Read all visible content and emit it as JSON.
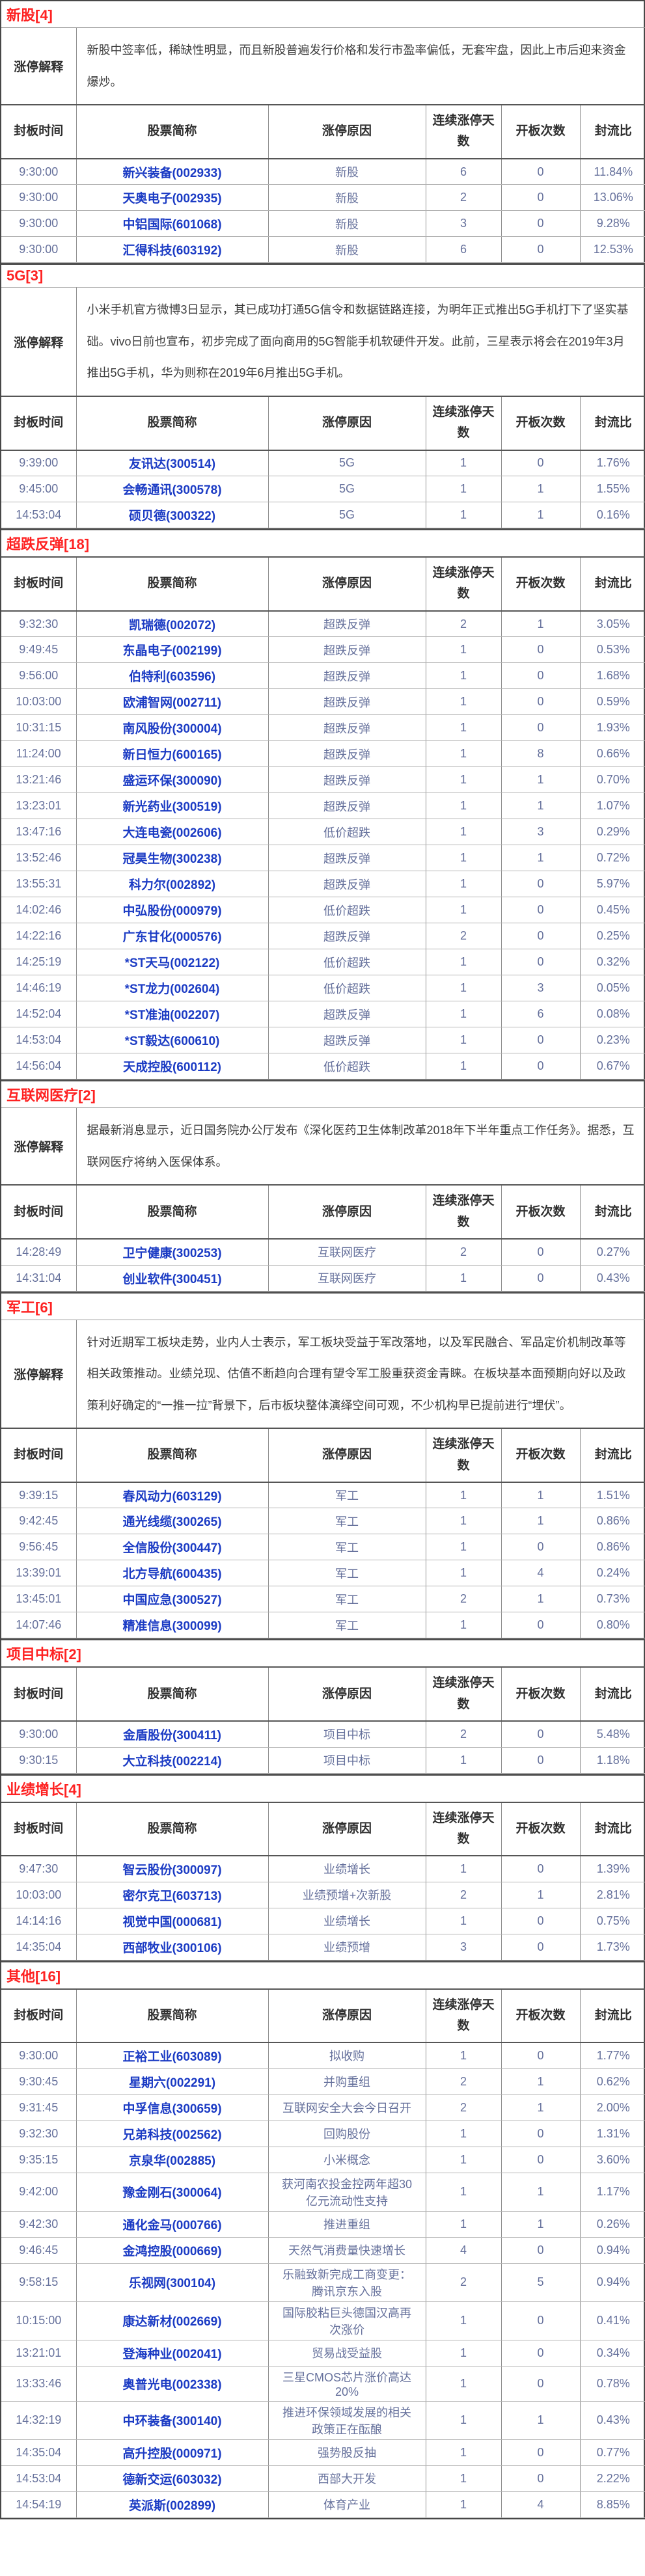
{
  "explain_label": "涨停解释",
  "columns": [
    "封板时间",
    "股票简称",
    "涨停原因",
    "连续涨停天数",
    "开板次数",
    "封流比"
  ],
  "colors": {
    "section_title_red": "#fe2222",
    "stock_link_blue": "#1b3bc4",
    "body_text_slate": "#66719c",
    "header_text": "#2f2f2f",
    "border_dark": "#4f4f4f",
    "border_light": "#b2b2b2"
  },
  "sections": [
    {
      "title": "新股[4]",
      "explanation": "新股中签率低，稀缺性明显，而且新股普遍发行价格和发行市盈率偏低，无套牢盘，因此上市后迎来资金爆炒。",
      "rows": [
        [
          "9:30:00",
          "新兴装备(002933)",
          "新股",
          "6",
          "0",
          "11.84%"
        ],
        [
          "9:30:00",
          "天奥电子(002935)",
          "新股",
          "2",
          "0",
          "13.06%"
        ],
        [
          "9:30:00",
          "中铝国际(601068)",
          "新股",
          "3",
          "0",
          "9.28%"
        ],
        [
          "9:30:00",
          "汇得科技(603192)",
          "新股",
          "6",
          "0",
          "12.53%"
        ]
      ]
    },
    {
      "title": "5G[3]",
      "explanation": "小米手机官方微博3日显示，其已成功打通5G信令和数据链路连接，为明年正式推出5G手机打下了坚实基础。vivo日前也宣布，初步完成了面向商用的5G智能手机软硬件开发。此前，三星表示将会在2019年3月推出5G手机，华为则称在2019年6月推出5G手机。",
      "rows": [
        [
          "9:39:00",
          "友讯达(300514)",
          "5G",
          "1",
          "0",
          "1.76%"
        ],
        [
          "9:45:00",
          "会畅通讯(300578)",
          "5G",
          "1",
          "1",
          "1.55%"
        ],
        [
          "14:53:04",
          "硕贝德(300322)",
          "5G",
          "1",
          "1",
          "0.16%"
        ]
      ]
    },
    {
      "title": "超跌反弹[18]",
      "explanation": null,
      "rows": [
        [
          "9:32:30",
          "凯瑞德(002072)",
          "超跌反弹",
          "2",
          "1",
          "3.05%"
        ],
        [
          "9:49:45",
          "东晶电子(002199)",
          "超跌反弹",
          "1",
          "0",
          "0.53%"
        ],
        [
          "9:56:00",
          "伯特利(603596)",
          "超跌反弹",
          "1",
          "0",
          "1.68%"
        ],
        [
          "10:03:00",
          "欧浦智网(002711)",
          "超跌反弹",
          "1",
          "0",
          "0.59%"
        ],
        [
          "10:31:15",
          "南风股份(300004)",
          "超跌反弹",
          "1",
          "0",
          "1.93%"
        ],
        [
          "11:24:00",
          "新日恒力(600165)",
          "超跌反弹",
          "1",
          "8",
          "0.66%"
        ],
        [
          "13:21:46",
          "盛运环保(300090)",
          "超跌反弹",
          "1",
          "1",
          "0.70%"
        ],
        [
          "13:23:01",
          "新光药业(300519)",
          "超跌反弹",
          "1",
          "1",
          "1.07%"
        ],
        [
          "13:47:16",
          "大连电瓷(002606)",
          "低价超跌",
          "1",
          "3",
          "0.29%"
        ],
        [
          "13:52:46",
          "冠昊生物(300238)",
          "超跌反弹",
          "1",
          "1",
          "0.72%"
        ],
        [
          "13:55:31",
          "科力尔(002892)",
          "超跌反弹",
          "1",
          "0",
          "5.97%"
        ],
        [
          "14:02:46",
          "中弘股份(000979)",
          "低价超跌",
          "1",
          "0",
          "0.45%"
        ],
        [
          "14:22:16",
          "广东甘化(000576)",
          "超跌反弹",
          "2",
          "0",
          "0.25%"
        ],
        [
          "14:25:19",
          "*ST天马(002122)",
          "低价超跌",
          "1",
          "0",
          "0.32%"
        ],
        [
          "14:46:19",
          "*ST龙力(002604)",
          "低价超跌",
          "1",
          "3",
          "0.05%"
        ],
        [
          "14:52:04",
          "*ST准油(002207)",
          "超跌反弹",
          "1",
          "6",
          "0.08%"
        ],
        [
          "14:53:04",
          "*ST毅达(600610)",
          "超跌反弹",
          "1",
          "0",
          "0.23%"
        ],
        [
          "14:56:04",
          "天成控股(600112)",
          "低价超跌",
          "1",
          "0",
          "0.67%"
        ]
      ]
    },
    {
      "title": "互联网医疗[2]",
      "explanation": "据最新消息显示，近日国务院办公厅发布《深化医药卫生体制改革2018年下半年重点工作任务》。据悉，互联网医疗将纳入医保体系。",
      "rows": [
        [
          "14:28:49",
          "卫宁健康(300253)",
          "互联网医疗",
          "2",
          "0",
          "0.27%"
        ],
        [
          "14:31:04",
          "创业软件(300451)",
          "互联网医疗",
          "1",
          "0",
          "0.43%"
        ]
      ]
    },
    {
      "title": "军工[6]",
      "explanation": "针对近期军工板块走势，业内人士表示，军工板块受益于军改落地，以及军民融合、军品定价机制改革等相关政策推动。业绩兑现、估值不断趋向合理有望令军工股重获资金青睐。在板块基本面预期向好以及政策利好确定的“一推一拉”背景下，后市板块整体演绎空间可观，不少机构早已提前进行“埋伏”。",
      "rows": [
        [
          "9:39:15",
          "春风动力(603129)",
          "军工",
          "1",
          "1",
          "1.51%"
        ],
        [
          "9:42:45",
          "通光线缆(300265)",
          "军工",
          "1",
          "1",
          "0.86%"
        ],
        [
          "9:56:45",
          "全信股份(300447)",
          "军工",
          "1",
          "0",
          "0.86%"
        ],
        [
          "13:39:01",
          "北方导航(600435)",
          "军工",
          "1",
          "4",
          "0.24%"
        ],
        [
          "13:45:01",
          "中国应急(300527)",
          "军工",
          "2",
          "1",
          "0.73%"
        ],
        [
          "14:07:46",
          "精准信息(300099)",
          "军工",
          "1",
          "0",
          "0.80%"
        ]
      ]
    },
    {
      "title": "项目中标[2]",
      "explanation": null,
      "rows": [
        [
          "9:30:00",
          "金盾股份(300411)",
          "项目中标",
          "2",
          "0",
          "5.48%"
        ],
        [
          "9:30:15",
          "大立科技(002214)",
          "项目中标",
          "1",
          "0",
          "1.18%"
        ]
      ]
    },
    {
      "title": "业绩增长[4]",
      "explanation": null,
      "rows": [
        [
          "9:47:30",
          "智云股份(300097)",
          "业绩增长",
          "1",
          "0",
          "1.39%"
        ],
        [
          "10:03:00",
          "密尔克卫(603713)",
          "业绩预增+次新股",
          "2",
          "1",
          "2.81%"
        ],
        [
          "14:14:16",
          "视觉中国(000681)",
          "业绩增长",
          "1",
          "0",
          "0.75%"
        ],
        [
          "14:35:04",
          "西部牧业(300106)",
          "业绩预增",
          "3",
          "0",
          "1.73%"
        ]
      ]
    },
    {
      "title": "其他[16]",
      "explanation": null,
      "rows": [
        [
          "9:30:00",
          "正裕工业(603089)",
          "拟收购",
          "1",
          "0",
          "1.77%"
        ],
        [
          "9:30:45",
          "星期六(002291)",
          "并购重组",
          "2",
          "1",
          "0.62%"
        ],
        [
          "9:31:45",
          "中孚信息(300659)",
          "互联网安全大会今日召开",
          "2",
          "1",
          "2.00%"
        ],
        [
          "9:32:30",
          "兄弟科技(002562)",
          "回购股份",
          "1",
          "0",
          "1.31%"
        ],
        [
          "9:35:15",
          "京泉华(002885)",
          "小米概念",
          "1",
          "0",
          "3.60%"
        ],
        [
          "9:42:00",
          "豫金刚石(300064)",
          "获河南农投金控两年超30亿元流动性支持",
          "1",
          "1",
          "1.17%"
        ],
        [
          "9:42:30",
          "通化金马(000766)",
          "推进重组",
          "1",
          "1",
          "0.26%"
        ],
        [
          "9:46:45",
          "金鸿控股(000669)",
          "天然气消费量快速增长",
          "4",
          "0",
          "0.94%"
        ],
        [
          "9:58:15",
          "乐视网(300104)",
          "乐融致新完成工商变更：腾讯京东入股",
          "2",
          "5",
          "0.94%"
        ],
        [
          "10:15:00",
          "康达新材(002669)",
          "国际胶粘巨头德国汉高再次涨价",
          "1",
          "0",
          "0.41%"
        ],
        [
          "13:21:01",
          "登海种业(002041)",
          "贸易战受益股",
          "1",
          "0",
          "0.34%"
        ],
        [
          "13:33:46",
          "奥普光电(002338)",
          "三星CMOS芯片涨价高达20%",
          "1",
          "0",
          "0.78%"
        ],
        [
          "14:32:19",
          "中环装备(300140)",
          "推进环保领域发展的相关政策正在酝酿",
          "1",
          "1",
          "0.43%"
        ],
        [
          "14:35:04",
          "高升控股(000971)",
          "强势股反抽",
          "1",
          "0",
          "0.77%"
        ],
        [
          "14:53:04",
          "德新交运(603032)",
          "西部大开发",
          "1",
          "0",
          "2.22%"
        ],
        [
          "14:54:19",
          "英派斯(002899)",
          "体育产业",
          "1",
          "4",
          "8.85%"
        ]
      ]
    }
  ]
}
